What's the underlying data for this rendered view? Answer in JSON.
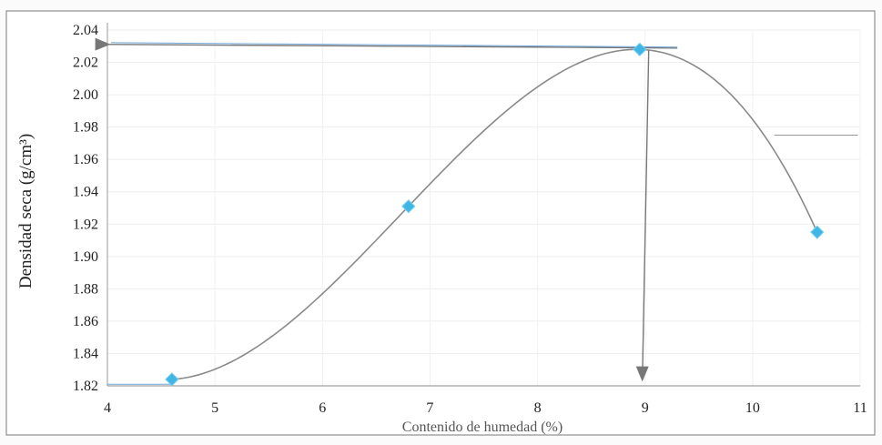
{
  "chart_data": {
    "type": "scatter",
    "xlabel": "Contenido de humedad (%)",
    "ylabel": "Densidad seca (g/cm³)",
    "xlim": [
      4,
      11
    ],
    "ylim": [
      1.82,
      2.04
    ],
    "x_ticks": [
      "4",
      "5",
      "6",
      "7",
      "8",
      "9",
      "10",
      "11"
    ],
    "y_ticks": [
      "1.82",
      "1.84",
      "1.86",
      "1.88",
      "1.90",
      "1.92",
      "1.94",
      "1.96",
      "1.98",
      "2.00",
      "2.02",
      "2.04"
    ],
    "grid": true,
    "legend": "none",
    "series": [
      {
        "points": [
          {
            "x": 4.6,
            "y": 1.824
          },
          {
            "x": 6.8,
            "y": 1.931
          },
          {
            "x": 8.95,
            "y": 2.028
          },
          {
            "x": 10.6,
            "y": 1.915
          }
        ]
      }
    ],
    "annotations": {
      "max_dry_density": 2.03,
      "optimum_moisture": 9.0,
      "horizontal_guide_y": 1.975
    },
    "colors": {
      "marker": "#3fb6e6",
      "curve": "#8a8a8a",
      "arrow": "#777777",
      "guide_line": "#6fa7d8"
    }
  }
}
